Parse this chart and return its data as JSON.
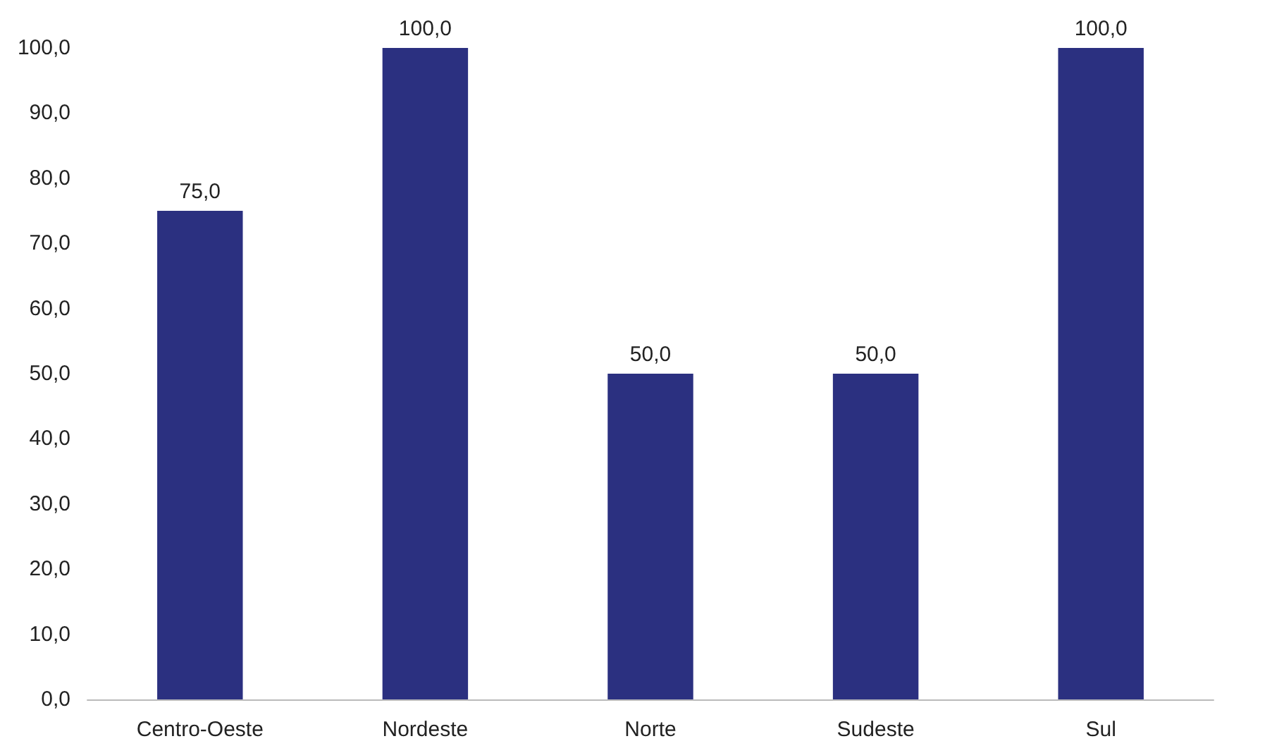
{
  "chart_data": {
    "type": "bar",
    "categories": [
      "Centro-Oeste",
      "Nordeste",
      "Norte",
      "Sudeste",
      "Sul"
    ],
    "values": [
      75,
      100,
      50,
      50,
      100
    ],
    "value_labels": [
      "75,0",
      "100,0",
      "50,0",
      "50,0",
      "100,0"
    ],
    "color": "#2b3080",
    "ylim": [
      0,
      100
    ],
    "yticks": [
      {
        "value": 0,
        "label": "0,0"
      },
      {
        "value": 10,
        "label": "10,0"
      },
      {
        "value": 20,
        "label": "20,0"
      },
      {
        "value": 30,
        "label": "30,0"
      },
      {
        "value": 40,
        "label": "40,0"
      },
      {
        "value": 50,
        "label": "50,0"
      },
      {
        "value": 60,
        "label": "60,0"
      },
      {
        "value": 70,
        "label": "70,0"
      },
      {
        "value": 80,
        "label": "80,0"
      },
      {
        "value": 90,
        "label": "90,0"
      },
      {
        "value": 100,
        "label": "100,0"
      }
    ],
    "grid": false
  }
}
